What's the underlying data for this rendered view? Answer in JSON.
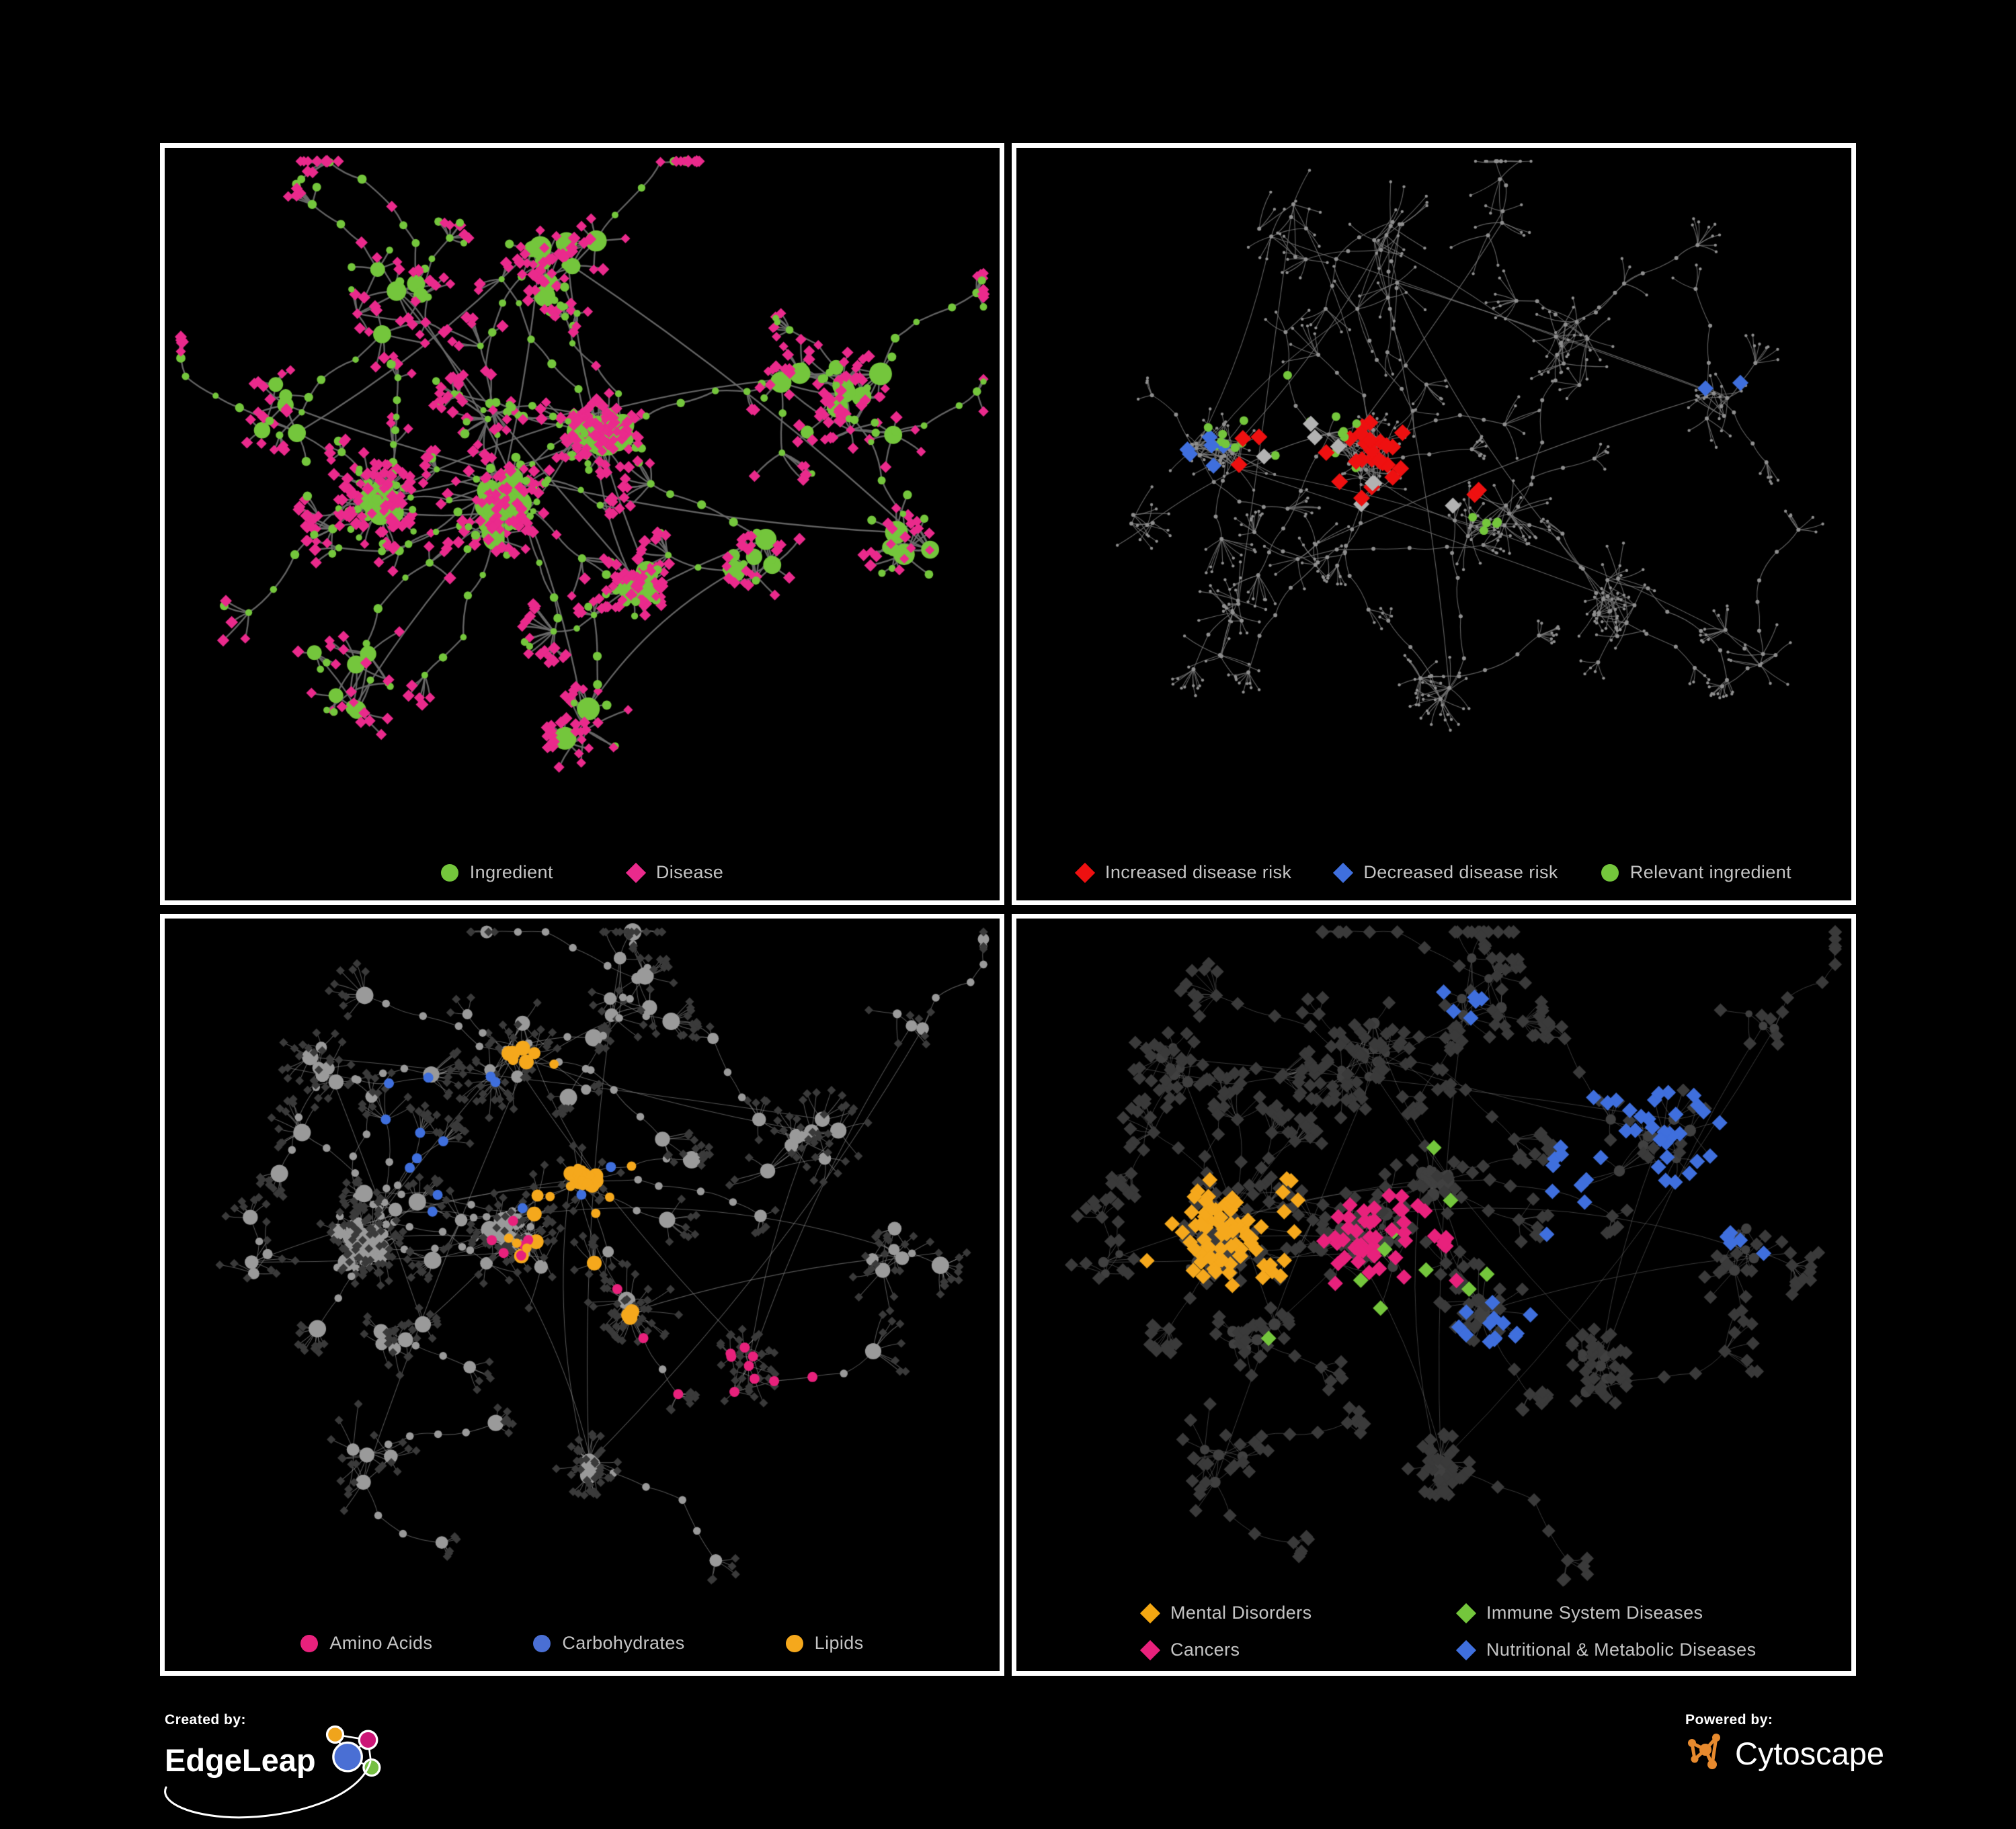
{
  "page": {
    "background": "#000000",
    "panel_border": "#ffffff"
  },
  "panels": [
    {
      "id": "ingredient-disease-network",
      "legend": [
        {
          "shape": "circle",
          "color": "#74c63c",
          "label": "Ingredient"
        },
        {
          "shape": "diamond",
          "color": "#ea2a8c",
          "label": "Disease"
        }
      ]
    },
    {
      "id": "disease-risk-network",
      "legend": [
        {
          "shape": "diamond",
          "color": "#ee1010",
          "label": "Increased disease risk"
        },
        {
          "shape": "diamond",
          "color": "#3f6fdd",
          "label": "Decreased disease risk"
        },
        {
          "shape": "circle",
          "color": "#74c63c",
          "label": "Relevant ingredient"
        }
      ]
    },
    {
      "id": "ingredient-classes-network",
      "legend": [
        {
          "shape": "circle",
          "color": "#e8217c",
          "label": "Amino Acids"
        },
        {
          "shape": "circle",
          "color": "#4a6fd4",
          "label": "Carbohydrates"
        },
        {
          "shape": "circle",
          "color": "#f5a81c",
          "label": "Lipids"
        }
      ]
    },
    {
      "id": "disease-classes-network",
      "legend": [
        {
          "shape": "diamond",
          "color": "#f3a712",
          "label": "Mental Disorders"
        },
        {
          "shape": "diamond",
          "color": "#74c63c",
          "label": "Immune System Diseases"
        },
        {
          "shape": "diamond",
          "color": "#e8217c",
          "label": "Cancers"
        },
        {
          "shape": "diamond",
          "color": "#3f6fdd",
          "label": "Nutritional & Metabolic Diseases"
        }
      ]
    }
  ],
  "footer": {
    "created_by": "Created by:",
    "created_brand": "EdgeLeap",
    "powered_by": "Powered by:",
    "powered_brand": "Cytoscape"
  },
  "colors": {
    "green": "#74c63c",
    "pink": "#ea2a8c",
    "cancer_pink": "#e8217c",
    "red": "#ee1010",
    "blue": "#3f6fdd",
    "orange": "#f5a81c",
    "silver": "#b2b2b2",
    "gray_hub": "#9a9a9a",
    "dark_node": "#3a3a3a",
    "dark_hub": "#404040",
    "dot": "#8f8f8f",
    "edge_p1": "#6b6b6b",
    "edge_p2": "#787878",
    "edge_p3": "#9a9a9a",
    "edge_p4": "#8f8f8f",
    "legend_text": "#c4c4c4",
    "cytoscape_orange": "#e78a2e",
    "edgeleap_blue": "#4a6fd4",
    "edgeleap_orange": "#f0a41c",
    "edgeleap_magenta": "#cc1677",
    "edgeleap_green": "#76bf43",
    "logo_white": "#ffffff"
  }
}
